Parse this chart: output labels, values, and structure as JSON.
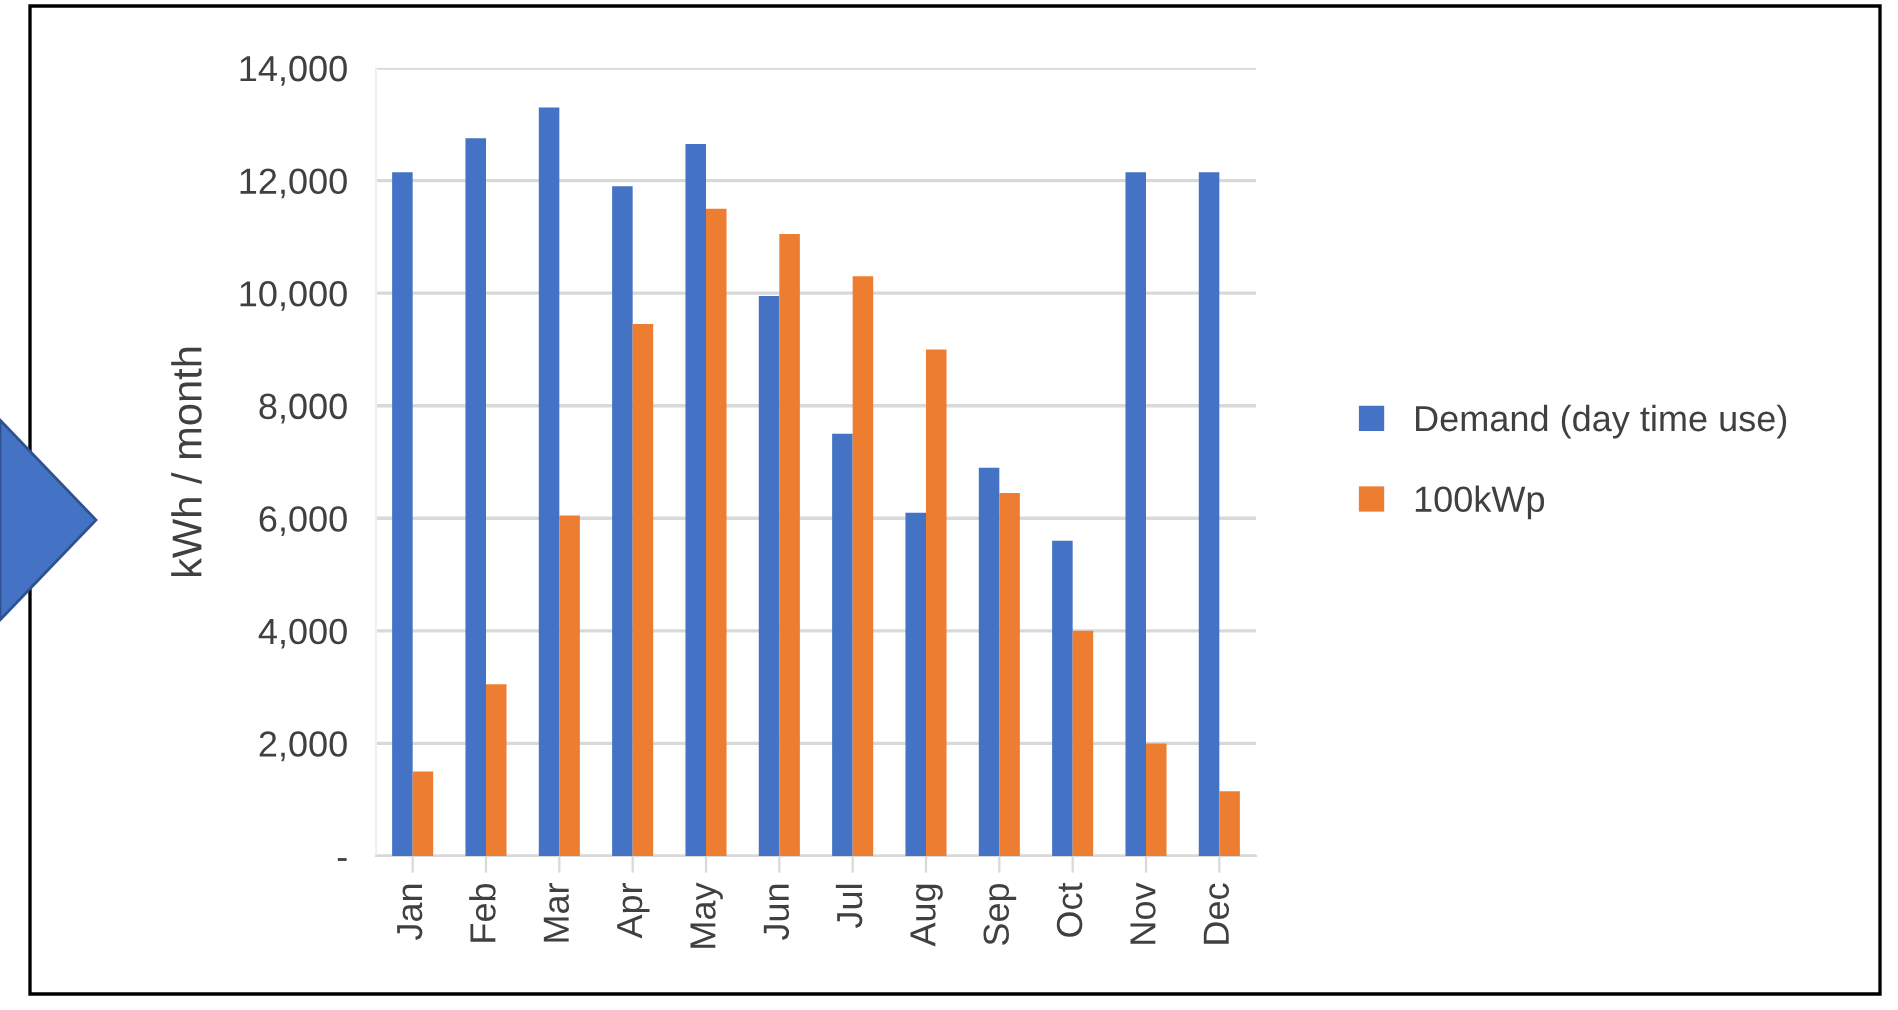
{
  "chart_data": {
    "type": "bar",
    "ylabel": "kWh / month",
    "categories": [
      "Jan",
      "Feb",
      "Mar",
      "Apr",
      "May",
      "Jun",
      "Jul",
      "Aug",
      "Sep",
      "Oct",
      "Nov",
      "Dec"
    ],
    "series": [
      {
        "name": "Demand (day time use)",
        "color": "#4472c4",
        "values": [
          12150,
          12750,
          13300,
          11900,
          12650,
          9950,
          7500,
          6100,
          6900,
          5600,
          12150,
          12150
        ]
      },
      {
        "name": "100kWp",
        "color": "#ed7d31",
        "values": [
          1500,
          3050,
          6050,
          9450,
          11500,
          11050,
          10300,
          9000,
          6450,
          4000,
          2000,
          1150
        ]
      }
    ],
    "ylim": [
      0,
      14000
    ],
    "yticks": [
      {
        "value": 0,
        "label": "-"
      },
      {
        "value": 2000,
        "label": "2,000"
      },
      {
        "value": 4000,
        "label": "4,000"
      },
      {
        "value": 6000,
        "label": "6,000"
      },
      {
        "value": 8000,
        "label": "8,000"
      },
      {
        "value": 10000,
        "label": "10,000"
      },
      {
        "value": 12000,
        "label": "12,000"
      },
      {
        "value": 14000,
        "label": "14,000"
      }
    ],
    "grid": "y",
    "legend": "right"
  }
}
